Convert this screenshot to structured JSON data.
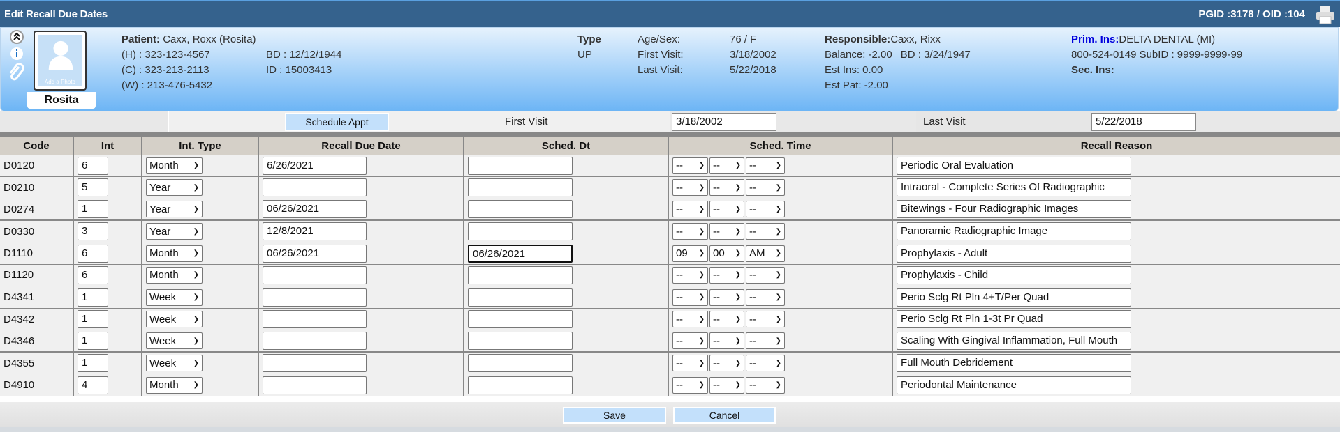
{
  "header": {
    "title": "Edit Recall Due Dates",
    "ids": "PGID :3178  /  OID :104",
    "print_icon": "printer-icon"
  },
  "patient": {
    "label": "Patient:",
    "name": "Caxx, Roxx (Rosita)",
    "nickname": "Rosita",
    "photo_caption": "Add a Photo",
    "home": "(H) : 323-123-4567",
    "cell": "(C) : 323-213-2113",
    "work": "(W) : 213-476-5432",
    "bd": "BD : 12/12/1944",
    "id": "ID : 15003413",
    "type_label": "Type",
    "type": "UP",
    "age_sex_label": "Age/Sex:",
    "age_sex": "76 / F",
    "first_visit_label": "First Visit:",
    "first_visit": "3/18/2002",
    "last_visit_label": "Last Visit:",
    "last_visit": "5/22/2018",
    "responsible_label": "Responsible:",
    "responsible": "Caxx, Rixx",
    "balance": "Balance: -2.00",
    "resp_bd": "BD : 3/24/1947",
    "est_ins": "Est Ins:  0.00",
    "est_pat": "Est Pat: -2.00",
    "prim_ins_label": "Prim. Ins:",
    "prim_ins": "DELTA DENTAL (MI)",
    "prim_ins_detail": "800-524-0149 SubID : 9999-9999-99",
    "sec_ins_label": "Sec. Ins:",
    "accent": "#0000dd"
  },
  "toolbar": {
    "schedule_appt": "Schedule Appt",
    "first_visit_label": "First Visit",
    "first_visit": "3/18/2002",
    "last_visit_label": "Last Visit",
    "last_visit": "5/22/2018"
  },
  "table": {
    "headers": [
      "Code",
      "Int",
      "Int. Type",
      "Recall Due Date",
      "Sched. Dt",
      "Sched. Time",
      "Recall Reason"
    ],
    "rows": [
      {
        "code": "D0120",
        "int": "6",
        "type": "Month",
        "due": "6/26/2021",
        "sched": "",
        "h": "--",
        "m": "--",
        "ap": "--",
        "reason": "Periodic Oral Evaluation"
      },
      {
        "code": "D0210",
        "int": "5",
        "type": "Year",
        "due": "",
        "sched": "",
        "h": "--",
        "m": "--",
        "ap": "--",
        "reason": "Intraoral - Complete Series Of Radiographic"
      },
      {
        "code": "D0274",
        "int": "1",
        "type": "Year",
        "due": "06/26/2021",
        "sched": "",
        "h": "--",
        "m": "--",
        "ap": "--",
        "reason": "Bitewings - Four Radiographic Images"
      },
      {
        "code": "D0330",
        "int": "3",
        "type": "Year",
        "due": "12/8/2021",
        "sched": "",
        "h": "--",
        "m": "--",
        "ap": "--",
        "reason": "Panoramic Radiographic Image"
      },
      {
        "code": "D1110",
        "int": "6",
        "type": "Month",
        "due": "06/26/2021",
        "sched": "06/26/2021",
        "h": "09",
        "m": "00",
        "ap": "AM",
        "reason": "Prophylaxis - Adult"
      },
      {
        "code": "D1120",
        "int": "6",
        "type": "Month",
        "due": "",
        "sched": "",
        "h": "--",
        "m": "--",
        "ap": "--",
        "reason": "Prophylaxis - Child"
      },
      {
        "code": "D4341",
        "int": "1",
        "type": "Week",
        "due": "",
        "sched": "",
        "h": "--",
        "m": "--",
        "ap": "--",
        "reason": "Perio Sclg Rt Pln 4+T/Per Quad"
      },
      {
        "code": "D4342",
        "int": "1",
        "type": "Week",
        "due": "",
        "sched": "",
        "h": "--",
        "m": "--",
        "ap": "--",
        "reason": "Perio Sclg Rt Pln 1-3t Pr Quad"
      },
      {
        "code": "D4346",
        "int": "1",
        "type": "Week",
        "due": "",
        "sched": "",
        "h": "--",
        "m": "--",
        "ap": "--",
        "reason": "Scaling With Gingival Inflammation, Full Mouth"
      },
      {
        "code": "D4355",
        "int": "1",
        "type": "Week",
        "due": "",
        "sched": "",
        "h": "--",
        "m": "--",
        "ap": "--",
        "reason": "Full Mouth Debridement"
      },
      {
        "code": "D4910",
        "int": "4",
        "type": "Month",
        "due": "",
        "sched": "",
        "h": "--",
        "m": "--",
        "ap": "--",
        "reason": "Periodontal Maintenance"
      }
    ]
  },
  "footer": {
    "save": "Save",
    "cancel": "Cancel"
  }
}
